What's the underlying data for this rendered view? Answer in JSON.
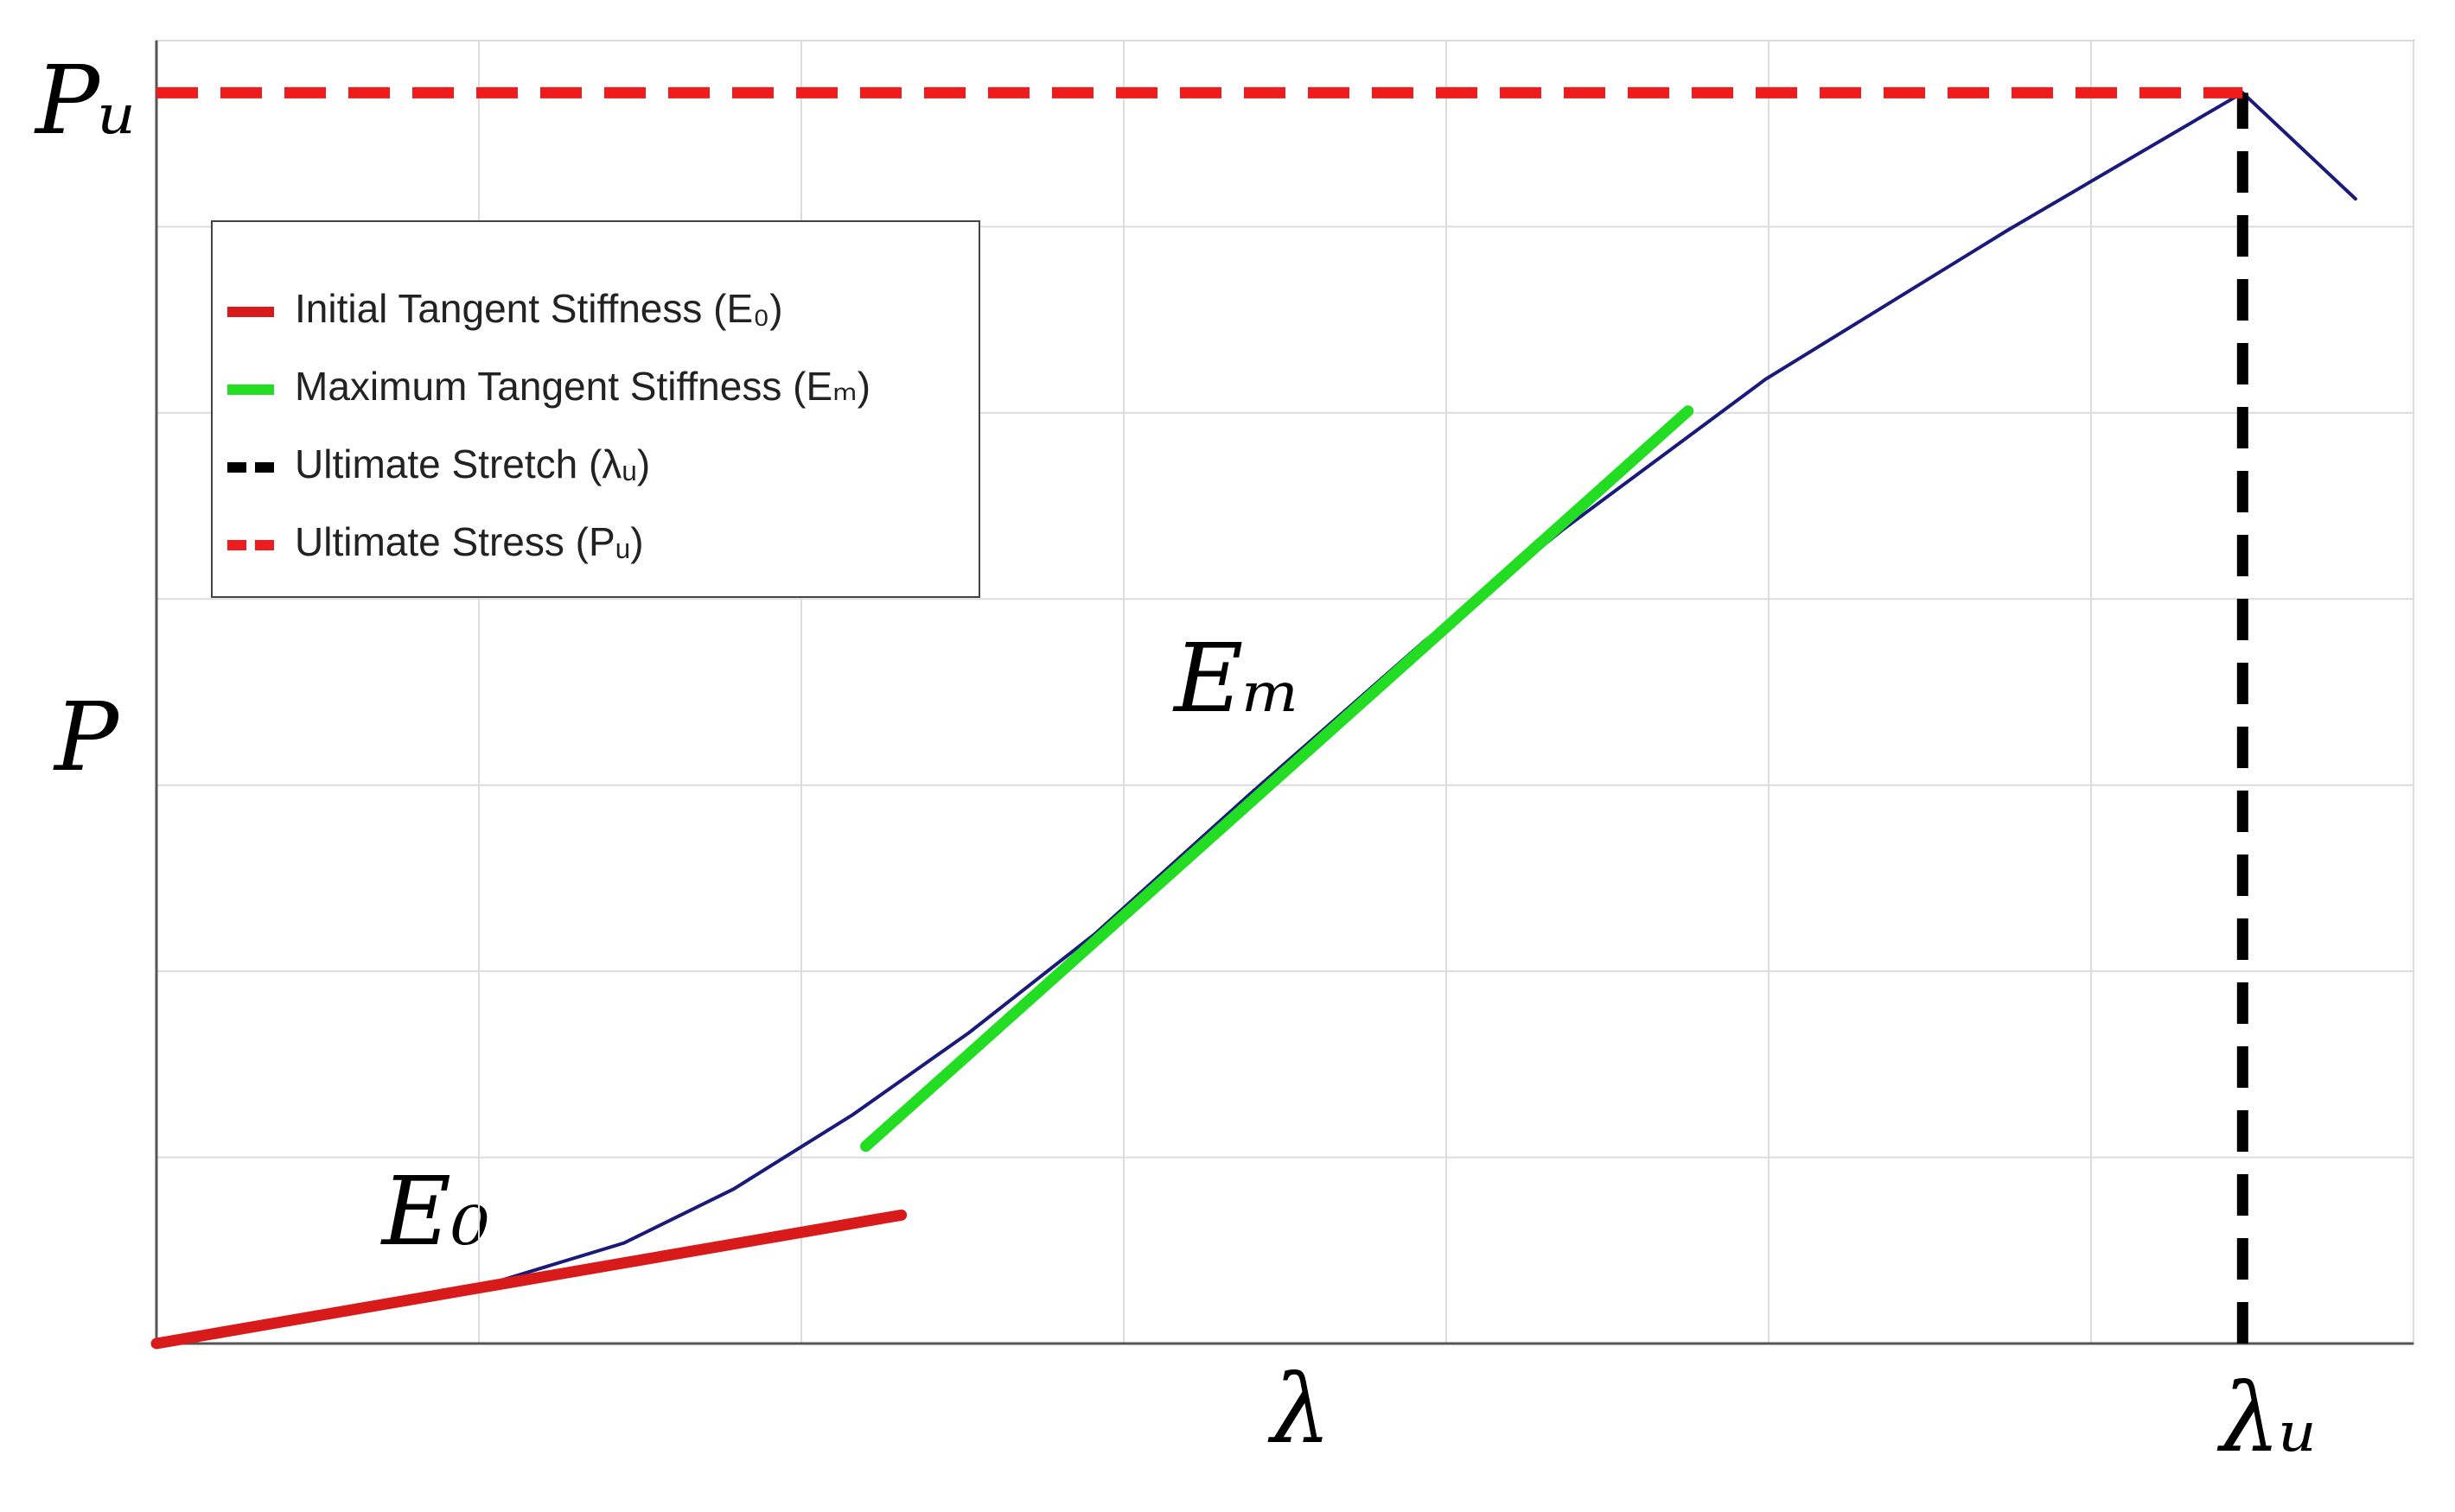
{
  "chart_data": {
    "type": "line",
    "x_label": "λ",
    "y_label": "P",
    "annotations": [
      "Pᵤ",
      "λᵤ",
      "Eₘ",
      "E₀"
    ],
    "xlim": [
      0,
      7
    ],
    "ylim": [
      0,
      7
    ],
    "xticks": [
      0,
      1,
      2,
      3,
      4,
      5,
      6,
      7
    ],
    "yticks": [
      0,
      1,
      2,
      3,
      4,
      5,
      6,
      7
    ],
    "grid": true,
    "legend": "upper left",
    "series": [
      {
        "color": "#1a1a7a",
        "dash": false,
        "x": [
          0,
          0.7,
          1.07,
          1.45,
          1.79,
          2.16,
          2.52,
          2.91,
          3.39,
          3.93,
          4.36,
          4.99,
          5.74,
          6.47,
          6.82
        ],
        "values": [
          0,
          0.2,
          0.34,
          0.54,
          0.83,
          1.23,
          1.67,
          2.2,
          2.95,
          3.77,
          4.37,
          5.18,
          5.98,
          6.72,
          6.15
        ]
      },
      {
        "name": "Initial Tangent Stiffness (E₀)",
        "color": "#d91a1a",
        "dash": false,
        "x": [
          0,
          2.31
        ],
        "values": [
          0,
          0.69
        ]
      },
      {
        "name": "Maximum Tangent Stiffness (Eₘ)",
        "color": "#22dd22",
        "dash": false,
        "x": [
          2.2,
          4.75
        ],
        "values": [
          1.06,
          5.01
        ]
      },
      {
        "name": "Ultimate Stretch (λᵤ)",
        "color": "#000000",
        "dash": true,
        "x": [
          6.47,
          6.47
        ],
        "values": [
          0,
          6.72
        ]
      },
      {
        "name": "Ultimate Stress (Pᵤ)",
        "color": "#ee1c1c",
        "dash": true,
        "x": [
          0,
          6.47
        ],
        "values": [
          6.72,
          6.72
        ]
      }
    ]
  }
}
